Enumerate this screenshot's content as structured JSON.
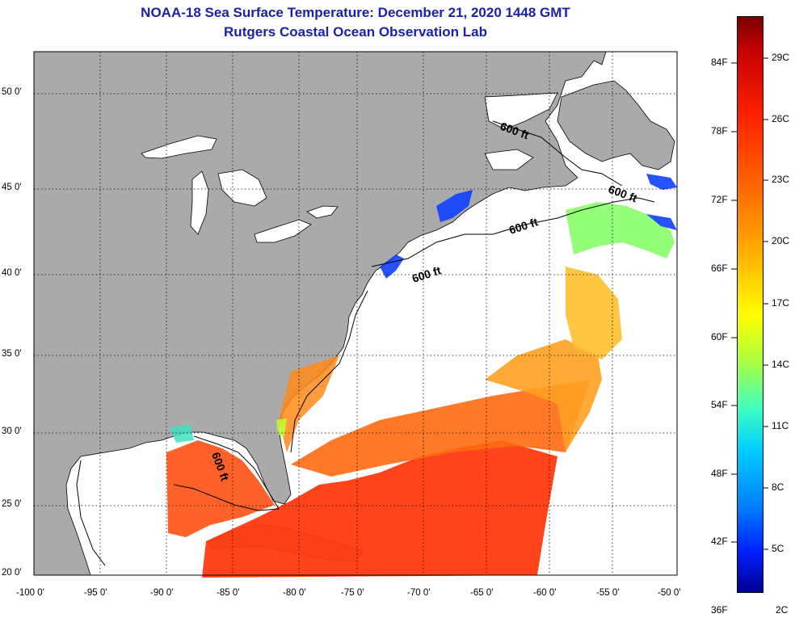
{
  "header": {
    "title": "NOAA-18 Sea Surface Temperature:  December 21, 2020 1448 GMT",
    "subtitle": "Rutgers Coastal Ocean Observation Lab"
  },
  "map": {
    "lat_labels": [
      "50 0'",
      "45 0'",
      "40 0'",
      "35 0'",
      "30 0'",
      "25 0'",
      "20 0'"
    ],
    "lon_labels": [
      "-100 0'",
      "-95 0'",
      "-90 0'",
      "-85 0'",
      "-80 0'",
      "-75 0'",
      "-70 0'",
      "-65 0'",
      "-60 0'",
      "-55 0'",
      "-50 0'"
    ],
    "contour_label": "600 ft",
    "colors": {
      "land": "#aaaaaa",
      "water": "#ffffff",
      "title": "#1a22a8"
    }
  },
  "colorbar": {
    "fahrenheit": [
      "84F",
      "78F",
      "72F",
      "66F",
      "60F",
      "54F",
      "48F",
      "42F",
      "36F"
    ],
    "celsius": [
      "29C",
      "26C",
      "23C",
      "20C",
      "17C",
      "14C",
      "11C",
      "8C",
      "5C",
      "2C"
    ]
  }
}
